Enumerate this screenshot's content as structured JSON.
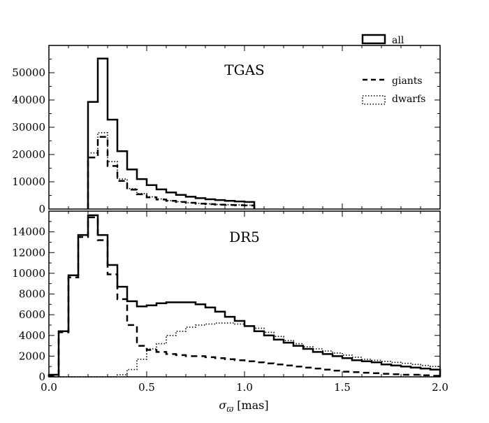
{
  "chart_data": {
    "type": "histogram",
    "x_axis": {
      "range": [
        0.0,
        2.0
      ],
      "ticks": [
        0.0,
        0.5,
        1.0,
        1.5,
        2.0
      ],
      "tick_labels": [
        "0.0",
        "0.5",
        "1.0",
        "1.5",
        "2.0"
      ],
      "label_symbol": "σ",
      "label_subscript": "ϖ",
      "label_unit": "[mas]"
    },
    "bin_width": 0.05,
    "legend": {
      "placement": "top-right",
      "entries": [
        {
          "label": "all",
          "style": "solid"
        },
        {
          "label": "giants",
          "style": "dashed"
        },
        {
          "label": "dwarfs",
          "style": "dotted"
        }
      ]
    },
    "panels": [
      {
        "title": "TGAS",
        "ylim": [
          0,
          60000
        ],
        "yticks": [
          0,
          10000,
          20000,
          30000,
          40000,
          50000
        ],
        "ytick_labels": [
          "0",
          "10000",
          "20000",
          "30000",
          "40000",
          "50000"
        ],
        "series": [
          {
            "name": "all",
            "style": "solid",
            "bin_start": 0.2,
            "values": [
              39300,
              55200,
              32800,
              21200,
              14500,
              11000,
              8800,
              7200,
              6100,
              5200,
              4500,
              4000,
              3600,
              3300,
              3000,
              2800,
              2600
            ]
          },
          {
            "name": "giants",
            "style": "dashed",
            "bin_start": 0.2,
            "values": [
              18900,
              26500,
              15800,
              10300,
              7100,
              5400,
              4300,
              3500,
              3000,
              2600,
              2300,
              2000,
              1800,
              1600,
              1500,
              1400,
              1300
            ]
          },
          {
            "name": "dwarfs",
            "style": "dotted",
            "bin_start": 0.2,
            "values": [
              20600,
              28000,
              17400,
              11000,
              7500,
              5700,
              4500,
              3700,
              3100,
              2700,
              2300,
              2100,
              1900,
              1700,
              1600,
              1500,
              1400
            ]
          }
        ]
      },
      {
        "title": "DR5",
        "ylim": [
          0,
          16000
        ],
        "yticks": [
          0,
          2000,
          4000,
          6000,
          8000,
          10000,
          12000,
          14000
        ],
        "ytick_labels": [
          "0",
          "2000",
          "4000",
          "6000",
          "8000",
          "10000",
          "12000",
          "14000"
        ],
        "series": [
          {
            "name": "all",
            "style": "solid",
            "bin_start": 0.0,
            "values": [
              200,
              4400,
              9800,
              13700,
              15600,
              13700,
              10800,
              8700,
              7300,
              6800,
              6900,
              7100,
              7200,
              7200,
              7200,
              7000,
              6700,
              6300,
              5800,
              5400,
              4900,
              4400,
              4000,
              3600,
              3300,
              3000,
              2700,
              2400,
              2200,
              2000,
              1800,
              1600,
              1500,
              1400,
              1200,
              1100,
              1000,
              900,
              800,
              700
            ]
          },
          {
            "name": "giants",
            "style": "dashed",
            "bin_start": 0.0,
            "values": [
              100,
              4300,
              9600,
              13500,
              15400,
              13200,
              9900,
              7500,
              5000,
              3000,
              2600,
              2400,
              2200,
              2100,
              2000,
              2000,
              1900,
              1800,
              1700,
              1600,
              1500,
              1400,
              1300,
              1200,
              1100,
              1000,
              900,
              800,
              700,
              600,
              500,
              450,
              400,
              350,
              300,
              250,
              200,
              200,
              150,
              100
            ]
          },
          {
            "name": "dwarfs",
            "style": "dotted",
            "bin_start": 0.0,
            "values": [
              0,
              0,
              0,
              0,
              0,
              0,
              0,
              200,
              700,
              1700,
              2700,
              3200,
              4000,
              4400,
              4800,
              5000,
              5100,
              5200,
              5200,
              5100,
              4900,
              4700,
              4300,
              3900,
              3500,
              3200,
              2900,
              2700,
              2500,
              2300,
              2100,
              1900,
              1700,
              1600,
              1500,
              1400,
              1300,
              1200,
              1100,
              1000
            ]
          }
        ]
      }
    ]
  }
}
